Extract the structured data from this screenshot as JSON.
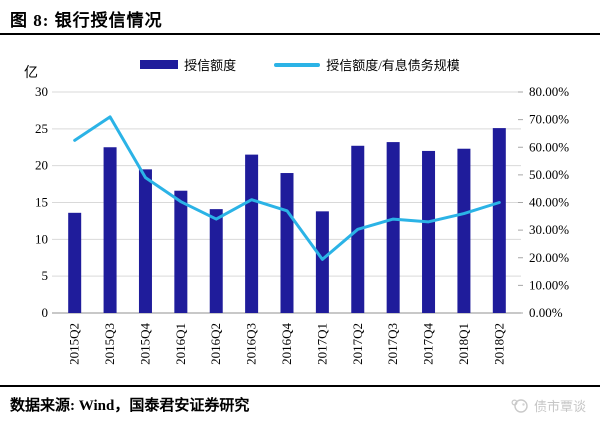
{
  "header": {
    "title": "图 8: 银行授信情况"
  },
  "legend": [
    {
      "label": "授信额度",
      "marker": "bar-swatch"
    },
    {
      "label": "授信额度/有息债务规模",
      "marker": "line-swatch"
    }
  ],
  "chart_data": {
    "type": "combo-bar-line",
    "unit_label": "亿",
    "categories": [
      "2015Q2",
      "2015Q3",
      "2015Q4",
      "2016Q1",
      "2016Q2",
      "2016Q3",
      "2016Q4",
      "2017Q1",
      "2017Q2",
      "2017Q3",
      "2017Q4",
      "2018Q1",
      "2018Q2"
    ],
    "series": [
      {
        "name": "授信额度",
        "type": "bar",
        "axis": "left",
        "values": [
          13.6,
          22.5,
          19.5,
          16.6,
          14.1,
          21.5,
          19.0,
          13.8,
          22.7,
          23.2,
          22.0,
          22.3,
          25.1
        ]
      },
      {
        "name": "授信额度/有息债务规模",
        "type": "line",
        "axis": "right",
        "values": [
          62.5,
          71.0,
          49.0,
          40.3,
          34.0,
          41.0,
          37.0,
          19.4,
          30.3,
          34.0,
          33.0,
          36.0,
          40.0
        ]
      }
    ],
    "left_axis": {
      "min": 0,
      "max": 30,
      "ticks": [
        "0",
        "5",
        "10",
        "15",
        "20",
        "25",
        "30"
      ]
    },
    "right_axis": {
      "min": 0,
      "max": 80,
      "ticks": [
        "0.00%",
        "10.00%",
        "20.00%",
        "30.00%",
        "40.00%",
        "50.00%",
        "60.00%",
        "70.00%",
        "80.00%"
      ]
    },
    "grid": true,
    "legend_position": "top"
  },
  "footer": {
    "source": "数据来源: Wind，国泰君安证券研究"
  },
  "watermark": {
    "label": "债市覃谈"
  },
  "colors": {
    "bar": "#1F1C9B",
    "line": "#2BB3E6",
    "grid": "#D9D9D9",
    "axis": "#A6A6A6",
    "text": "#000000",
    "watermark": "#C6C6C6"
  }
}
